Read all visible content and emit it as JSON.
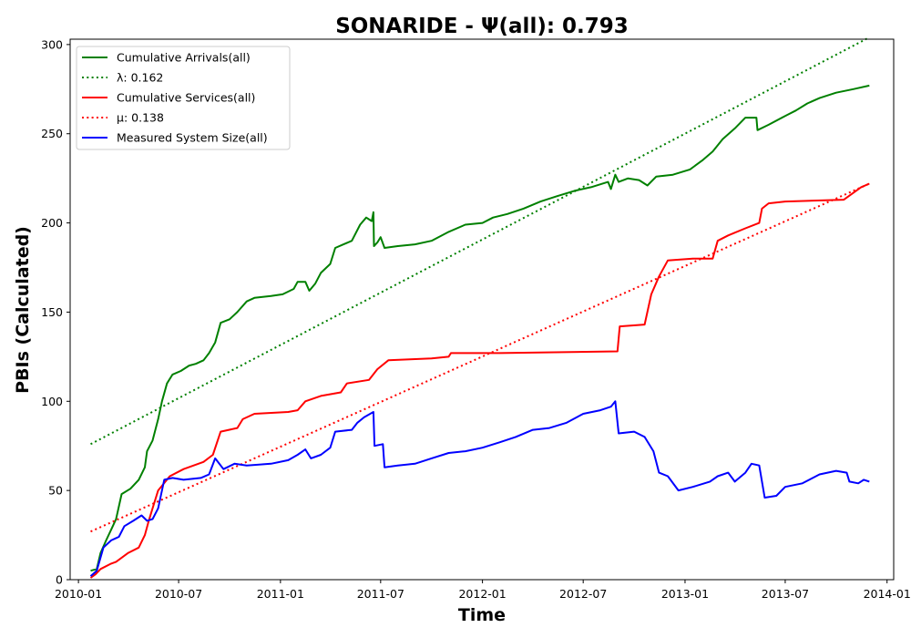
{
  "chart_data": {
    "type": "line",
    "title": "SONARIDE -  Ψ(all): 0.793",
    "xlabel": "Time",
    "ylabel": "PBIs (Calculated)",
    "xlim": [
      "2009-12-17",
      "2014-01-13"
    ],
    "ylim": [
      0,
      303
    ],
    "x_ticks": [
      "2010-01",
      "2010-07",
      "2011-01",
      "2011-07",
      "2012-01",
      "2012-07",
      "2013-01",
      "2013-07",
      "2014-01"
    ],
    "y_ticks": [
      0,
      50,
      100,
      150,
      200,
      250,
      300
    ],
    "grid": false,
    "legend_position": "top-left",
    "series": [
      {
        "name": "Cumulative Arrivals(all)",
        "color": "#008000",
        "style": "solid",
        "points": [
          [
            "2010-01-23",
            5
          ],
          [
            "2010-02-03",
            6
          ],
          [
            "2010-02-10",
            15
          ],
          [
            "2010-02-20",
            22
          ],
          [
            "2010-03-01",
            28
          ],
          [
            "2010-03-10",
            34
          ],
          [
            "2010-03-20",
            48
          ],
          [
            "2010-04-05",
            51
          ],
          [
            "2010-04-20",
            56
          ],
          [
            "2010-05-01",
            63
          ],
          [
            "2010-05-05",
            72
          ],
          [
            "2010-05-15",
            78
          ],
          [
            "2010-05-25",
            90
          ],
          [
            "2010-06-01",
            100
          ],
          [
            "2010-06-10",
            110
          ],
          [
            "2010-06-20",
            115
          ],
          [
            "2010-07-05",
            117
          ],
          [
            "2010-07-20",
            120
          ],
          [
            "2010-08-01",
            121
          ],
          [
            "2010-08-15",
            123
          ],
          [
            "2010-08-25",
            127
          ],
          [
            "2010-09-05",
            133
          ],
          [
            "2010-09-15",
            144
          ],
          [
            "2010-10-01",
            146
          ],
          [
            "2010-10-15",
            150
          ],
          [
            "2010-11-01",
            156
          ],
          [
            "2010-11-15",
            158
          ],
          [
            "2010-12-15",
            159
          ],
          [
            "2011-01-05",
            160
          ],
          [
            "2011-01-25",
            163
          ],
          [
            "2011-02-01",
            167
          ],
          [
            "2011-02-15",
            167
          ],
          [
            "2011-02-22",
            162
          ],
          [
            "2011-03-05",
            166
          ],
          [
            "2011-03-15",
            172
          ],
          [
            "2011-04-01",
            177
          ],
          [
            "2011-04-10",
            186
          ],
          [
            "2011-04-25",
            188
          ],
          [
            "2011-05-10",
            190
          ],
          [
            "2011-05-25",
            199
          ],
          [
            "2011-06-05",
            203
          ],
          [
            "2011-06-15",
            201
          ],
          [
            "2011-06-18",
            206
          ],
          [
            "2011-06-19",
            187
          ],
          [
            "2011-06-25",
            189
          ],
          [
            "2011-07-01",
            192
          ],
          [
            "2011-07-08",
            186
          ],
          [
            "2011-08-01",
            187
          ],
          [
            "2011-09-01",
            188
          ],
          [
            "2011-10-01",
            190
          ],
          [
            "2011-11-01",
            195
          ],
          [
            "2011-12-01",
            199
          ],
          [
            "2012-01-01",
            200
          ],
          [
            "2012-01-20",
            203
          ],
          [
            "2012-02-15",
            205
          ],
          [
            "2012-03-15",
            208
          ],
          [
            "2012-04-15",
            212
          ],
          [
            "2012-05-15",
            215
          ],
          [
            "2012-06-15",
            218
          ],
          [
            "2012-07-15",
            220
          ],
          [
            "2012-08-15",
            223
          ],
          [
            "2012-08-20",
            219
          ],
          [
            "2012-08-28",
            227
          ],
          [
            "2012-09-03",
            223
          ],
          [
            "2012-09-20",
            225
          ],
          [
            "2012-10-10",
            224
          ],
          [
            "2012-10-25",
            221
          ],
          [
            "2012-11-10",
            226
          ],
          [
            "2012-12-10",
            227
          ],
          [
            "2013-01-10",
            230
          ],
          [
            "2013-02-01",
            235
          ],
          [
            "2013-02-20",
            240
          ],
          [
            "2013-03-10",
            247
          ],
          [
            "2013-04-01",
            253
          ],
          [
            "2013-04-20",
            259
          ],
          [
            "2013-05-10",
            259
          ],
          [
            "2013-05-12",
            252
          ],
          [
            "2013-06-01",
            255
          ],
          [
            "2013-07-01",
            260
          ],
          [
            "2013-07-20",
            263
          ],
          [
            "2013-08-10",
            267
          ],
          [
            "2013-09-01",
            270
          ],
          [
            "2013-10-01",
            273
          ],
          [
            "2013-11-01",
            275
          ],
          [
            "2013-11-30",
            277
          ]
        ]
      },
      {
        "name": "λ: 0.162",
        "color": "#008000",
        "style": "dotted",
        "points": [
          [
            "2010-01-23",
            76
          ],
          [
            "2013-11-30",
            304
          ]
        ]
      },
      {
        "name": "Cumulative Services(all)",
        "color": "#ff0000",
        "style": "solid",
        "points": [
          [
            "2010-01-23",
            1
          ],
          [
            "2010-02-01",
            3
          ],
          [
            "2010-02-10",
            6
          ],
          [
            "2010-03-01",
            9
          ],
          [
            "2010-03-10",
            10
          ],
          [
            "2010-04-01",
            15
          ],
          [
            "2010-04-20",
            18
          ],
          [
            "2010-05-01",
            25
          ],
          [
            "2010-05-08",
            33
          ],
          [
            "2010-05-15",
            40
          ],
          [
            "2010-05-25",
            50
          ],
          [
            "2010-06-15",
            58
          ],
          [
            "2010-07-10",
            62
          ],
          [
            "2010-08-15",
            66
          ],
          [
            "2010-09-01",
            70
          ],
          [
            "2010-09-15",
            83
          ],
          [
            "2010-10-15",
            85
          ],
          [
            "2010-10-25",
            90
          ],
          [
            "2010-11-15",
            93
          ],
          [
            "2011-01-15",
            94
          ],
          [
            "2011-02-01",
            95
          ],
          [
            "2011-02-15",
            100
          ],
          [
            "2011-03-15",
            103
          ],
          [
            "2011-04-20",
            105
          ],
          [
            "2011-05-01",
            110
          ],
          [
            "2011-06-10",
            112
          ],
          [
            "2011-06-25",
            118
          ],
          [
            "2011-07-15",
            123
          ],
          [
            "2011-10-01",
            124
          ],
          [
            "2011-11-01",
            125
          ],
          [
            "2011-11-05",
            127
          ],
          [
            "2012-02-01",
            127
          ],
          [
            "2012-09-01",
            128
          ],
          [
            "2012-09-05",
            142
          ],
          [
            "2012-10-20",
            143
          ],
          [
            "2012-11-01",
            160
          ],
          [
            "2012-11-15",
            170
          ],
          [
            "2012-12-01",
            179
          ],
          [
            "2013-01-15",
            180
          ],
          [
            "2013-02-20",
            180
          ],
          [
            "2013-03-01",
            190
          ],
          [
            "2013-03-20",
            193
          ],
          [
            "2013-04-20",
            197
          ],
          [
            "2013-05-15",
            200
          ],
          [
            "2013-05-20",
            208
          ],
          [
            "2013-06-01",
            211
          ],
          [
            "2013-07-01",
            212
          ],
          [
            "2013-10-15",
            213
          ],
          [
            "2013-11-15",
            220
          ],
          [
            "2013-11-30",
            222
          ]
        ]
      },
      {
        "name": "μ: 0.138",
        "color": "#ff0000",
        "style": "dotted",
        "points": [
          [
            "2010-01-23",
            27
          ],
          [
            "2013-11-30",
            222
          ]
        ]
      },
      {
        "name": "Measured System Size(all)",
        "color": "#0000ff",
        "style": "solid",
        "points": [
          [
            "2010-01-23",
            2
          ],
          [
            "2010-02-03",
            5
          ],
          [
            "2010-02-15",
            18
          ],
          [
            "2010-03-01",
            22
          ],
          [
            "2010-03-15",
            24
          ],
          [
            "2010-03-25",
            30
          ],
          [
            "2010-04-10",
            33
          ],
          [
            "2010-04-25",
            36
          ],
          [
            "2010-05-05",
            33
          ],
          [
            "2010-05-15",
            34
          ],
          [
            "2010-05-25",
            40
          ],
          [
            "2010-06-05",
            56
          ],
          [
            "2010-06-20",
            57
          ],
          [
            "2010-07-10",
            56
          ],
          [
            "2010-08-10",
            57
          ],
          [
            "2010-08-25",
            59
          ],
          [
            "2010-09-05",
            68
          ],
          [
            "2010-09-20",
            62
          ],
          [
            "2010-10-10",
            65
          ],
          [
            "2010-11-01",
            64
          ],
          [
            "2010-12-15",
            65
          ],
          [
            "2011-01-15",
            67
          ],
          [
            "2011-02-01",
            70
          ],
          [
            "2011-02-15",
            73
          ],
          [
            "2011-02-25",
            68
          ],
          [
            "2011-03-15",
            70
          ],
          [
            "2011-04-01",
            74
          ],
          [
            "2011-04-10",
            83
          ],
          [
            "2011-05-10",
            84
          ],
          [
            "2011-05-20",
            88
          ],
          [
            "2011-06-01",
            91
          ],
          [
            "2011-06-18",
            94
          ],
          [
            "2011-06-20",
            75
          ],
          [
            "2011-07-05",
            76
          ],
          [
            "2011-07-08",
            63
          ],
          [
            "2011-08-01",
            64
          ],
          [
            "2011-09-01",
            65
          ],
          [
            "2011-10-01",
            68
          ],
          [
            "2011-11-01",
            71
          ],
          [
            "2011-12-01",
            72
          ],
          [
            "2012-01-01",
            74
          ],
          [
            "2012-02-01",
            77
          ],
          [
            "2012-03-01",
            80
          ],
          [
            "2012-04-01",
            84
          ],
          [
            "2012-05-01",
            85
          ],
          [
            "2012-06-01",
            88
          ],
          [
            "2012-07-01",
            93
          ],
          [
            "2012-08-01",
            95
          ],
          [
            "2012-08-20",
            97
          ],
          [
            "2012-08-28",
            100
          ],
          [
            "2012-09-03",
            82
          ],
          [
            "2012-10-01",
            83
          ],
          [
            "2012-10-20",
            80
          ],
          [
            "2012-11-05",
            72
          ],
          [
            "2012-11-15",
            60
          ],
          [
            "2012-12-01",
            58
          ],
          [
            "2012-12-20",
            50
          ],
          [
            "2013-01-15",
            52
          ],
          [
            "2013-02-15",
            55
          ],
          [
            "2013-03-01",
            58
          ],
          [
            "2013-03-20",
            60
          ],
          [
            "2013-04-01",
            55
          ],
          [
            "2013-04-20",
            60
          ],
          [
            "2013-05-01",
            65
          ],
          [
            "2013-05-15",
            64
          ],
          [
            "2013-05-25",
            46
          ],
          [
            "2013-06-15",
            47
          ],
          [
            "2013-07-01",
            52
          ],
          [
            "2013-08-01",
            54
          ],
          [
            "2013-09-01",
            59
          ],
          [
            "2013-10-01",
            61
          ],
          [
            "2013-10-20",
            60
          ],
          [
            "2013-10-25",
            55
          ],
          [
            "2013-11-10",
            54
          ],
          [
            "2013-11-20",
            56
          ],
          [
            "2013-11-30",
            55
          ]
        ]
      }
    ]
  }
}
